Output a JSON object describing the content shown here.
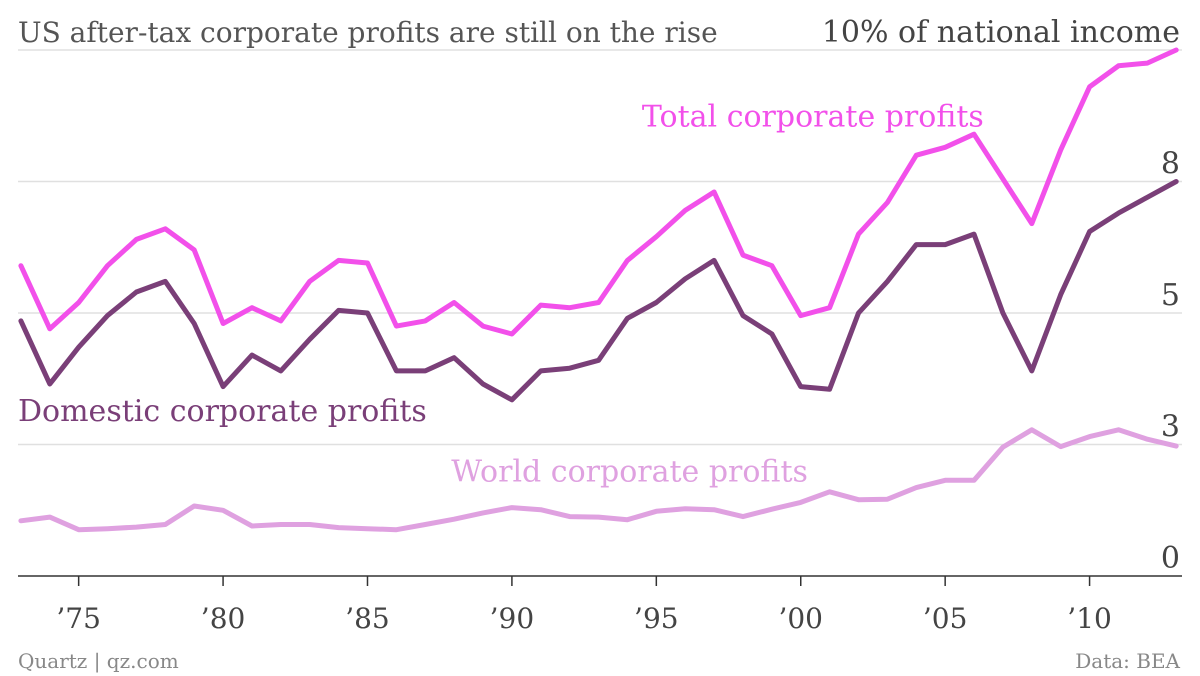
{
  "header": {
    "title": "US after-tax corporate profits are still on the rise",
    "unit_label": "10% of national income"
  },
  "footer": {
    "source_left": "Quartz | qz.com",
    "source_right": "Data: BEA"
  },
  "colors": {
    "total": "#f250ea",
    "domestic": "#7a3f78",
    "world": "#dfa1e0",
    "grid": "#e0e0e0",
    "axis": "#333333"
  },
  "chart_data": {
    "type": "line",
    "title": "US after-tax corporate profits are still on the rise",
    "xlim": [
      1972.9,
      2013.2
    ],
    "ylim": [
      0,
      10
    ],
    "y_ticks": [
      {
        "value": 0,
        "label": "0"
      },
      {
        "value": 2.5,
        "label": "3"
      },
      {
        "value": 5,
        "label": "5"
      },
      {
        "value": 7.5,
        "label": "8"
      },
      {
        "value": 10,
        "label": "10% of national income"
      }
    ],
    "x_ticks": [
      {
        "value": 1975,
        "label": "’75"
      },
      {
        "value": 1980,
        "label": "’80"
      },
      {
        "value": 1985,
        "label": "’85"
      },
      {
        "value": 1990,
        "label": "’90"
      },
      {
        "value": 1995,
        "label": "’95"
      },
      {
        "value": 2000,
        "label": "’00"
      },
      {
        "value": 2005,
        "label": "’05"
      },
      {
        "value": 2010,
        "label": "’10"
      }
    ],
    "x": [
      1973,
      1974,
      1975,
      1976,
      1977,
      1978,
      1979,
      1980,
      1981,
      1982,
      1983,
      1984,
      1985,
      1986,
      1987,
      1988,
      1989,
      1990,
      1991,
      1992,
      1993,
      1994,
      1995,
      1996,
      1997,
      1998,
      1999,
      2000,
      2001,
      2002,
      2003,
      2004,
      2005,
      2006,
      2007,
      2008,
      2009,
      2010,
      2011,
      2012,
      2013
    ],
    "series": [
      {
        "name": "Total corporate profits",
        "color_key": "total",
        "values": [
          5.9,
          4.7,
          5.2,
          5.9,
          6.4,
          6.6,
          6.2,
          4.8,
          5.1,
          4.85,
          5.6,
          6.0,
          5.95,
          4.75,
          4.85,
          5.2,
          4.75,
          4.6,
          5.15,
          5.1,
          5.2,
          6.0,
          6.45,
          6.95,
          7.3,
          6.1,
          5.9,
          4.95,
          5.1,
          6.5,
          7.1,
          8.0,
          8.15,
          8.4,
          7.55,
          6.7,
          8.1,
          9.3,
          9.7,
          9.75,
          10.0
        ]
      },
      {
        "name": "Domestic corporate profits",
        "color_key": "domestic",
        "values": [
          4.85,
          3.65,
          4.35,
          4.95,
          5.4,
          5.6,
          4.8,
          3.6,
          4.2,
          3.9,
          4.5,
          5.05,
          5.0,
          3.9,
          3.9,
          4.15,
          3.65,
          3.35,
          3.9,
          3.95,
          4.1,
          4.9,
          5.2,
          5.65,
          6.0,
          4.95,
          4.6,
          3.6,
          3.55,
          5.0,
          5.6,
          6.3,
          6.3,
          6.5,
          5.0,
          3.9,
          5.35,
          6.55,
          6.9,
          7.2,
          7.5
        ]
      },
      {
        "name": "World corporate profits",
        "color_key": "world",
        "values": [
          1.05,
          1.12,
          0.88,
          0.9,
          0.93,
          0.98,
          1.33,
          1.25,
          0.95,
          0.98,
          0.98,
          0.92,
          0.9,
          0.88,
          0.98,
          1.08,
          1.2,
          1.3,
          1.26,
          1.13,
          1.12,
          1.07,
          1.23,
          1.28,
          1.26,
          1.13,
          1.27,
          1.4,
          1.6,
          1.45,
          1.46,
          1.68,
          1.82,
          1.82,
          2.45,
          2.78,
          2.46,
          2.65,
          2.78,
          2.6,
          2.47
        ]
      }
    ],
    "series_labels": [
      {
        "text": "Total corporate profits",
        "color_key": "total",
        "anchor_year": 1994.5,
        "anchor_value": 8.55
      },
      {
        "text": "Domestic corporate profits",
        "color_key": "domestic",
        "anchor_year": 1972.9,
        "anchor_value": 2.95
      },
      {
        "text": "World corporate profits",
        "color_key": "world",
        "anchor_year": 1987.9,
        "anchor_value": 1.8
      }
    ],
    "grid": true,
    "legend": "inline"
  }
}
